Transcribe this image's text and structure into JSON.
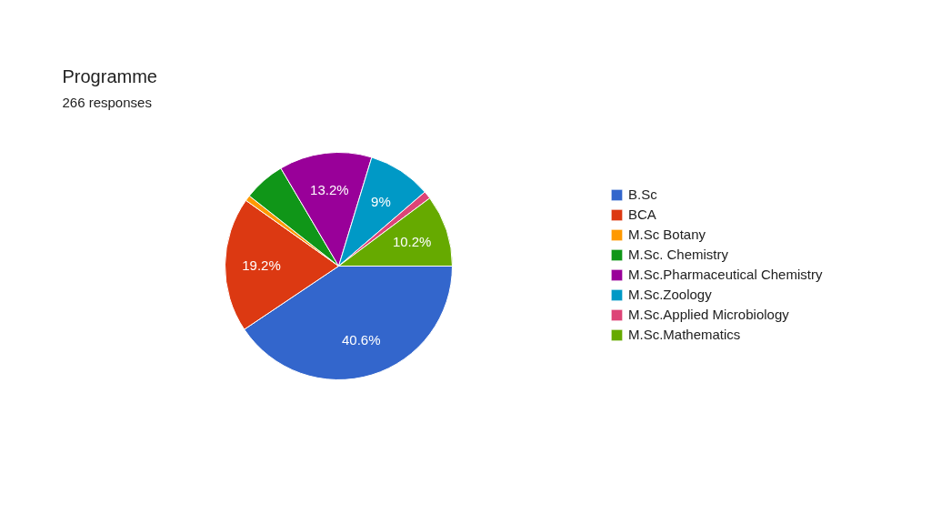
{
  "chart_data": {
    "type": "pie",
    "title": "Programme",
    "subtitle": "266 responses",
    "categories": [
      "B.Sc",
      "BCA",
      "M.Sc Botany",
      "M.Sc. Chemistry",
      "M.Sc.Pharmaceutical Chemistry",
      "M.Sc.Zoology",
      "M.Sc.Applied Microbiology",
      "M.Sc.Mathematics"
    ],
    "values": [
      40.6,
      19.2,
      0.8,
      5.9,
      13.2,
      9.0,
      1.1,
      10.2
    ],
    "value_labels": [
      "40.6%",
      "19.2%",
      null,
      null,
      "13.2%",
      "9%",
      null,
      "10.2%"
    ],
    "colors": [
      "#3366cc",
      "#dc3912",
      "#ff9900",
      "#109618",
      "#990099",
      "#0099c6",
      "#dd4477",
      "#66aa00"
    ],
    "legend": "right"
  }
}
